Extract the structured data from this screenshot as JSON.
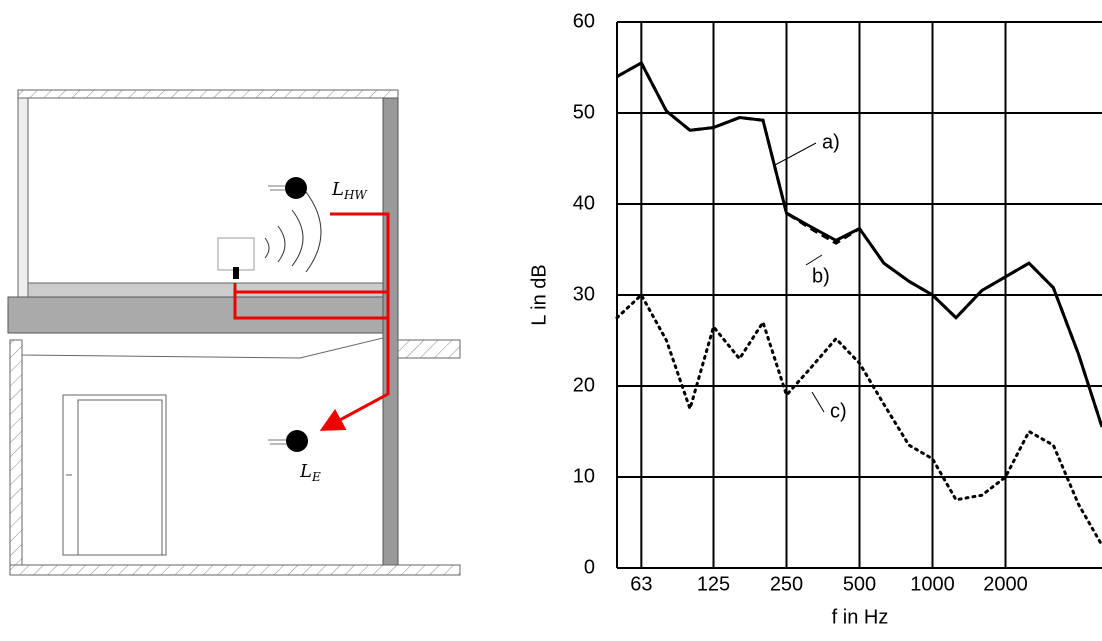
{
  "diagram": {
    "labels": [
      {
        "main": "L",
        "sub": "HW"
      },
      {
        "main": "L",
        "sub": "E"
      }
    ]
  },
  "chart_data": {
    "type": "line",
    "x_label": "f in Hz",
    "y_label": "L in dB",
    "x": [
      50,
      63,
      80,
      100,
      125,
      160,
      200,
      250,
      315,
      400,
      500,
      630,
      800,
      1000,
      1250,
      1600,
      2000,
      2500,
      3150,
      4000,
      5000
    ],
    "xlim": [
      50,
      5000
    ],
    "xscale": "log",
    "xticks": [
      63,
      125,
      250,
      500,
      1000,
      2000
    ],
    "ylim": [
      0,
      60
    ],
    "yticks": [
      0,
      10,
      20,
      30,
      40,
      50,
      60
    ],
    "grid": true,
    "series": [
      {
        "name": "a)",
        "color": "#000000",
        "style": "solid",
        "values": [
          54,
          55.5,
          50.2,
          48.1,
          48.4,
          49.5,
          49.2,
          39,
          37.5,
          36,
          37.3,
          33.5,
          31.5,
          30,
          27.5,
          30.5,
          32,
          33.5,
          30.8,
          23.5,
          15.5
        ]
      },
      {
        "name": "b)",
        "color": "#000000",
        "style": "dashed",
        "values": [
          54,
          55.5,
          50.2,
          48.1,
          48.4,
          49.5,
          49.2,
          39,
          37.3,
          35.7,
          37.3,
          33.5,
          31.5,
          30,
          27.5,
          30.5,
          32,
          33.5,
          30.8,
          23.5,
          15.5
        ]
      },
      {
        "name": "c)",
        "color": "#000000",
        "style": "dotted",
        "values": [
          27.5,
          30,
          25,
          17.5,
          26.5,
          23,
          27,
          19,
          22,
          25.2,
          22.5,
          18,
          13.5,
          12,
          7.5,
          8,
          10,
          15,
          13.5,
          7,
          2.5
        ]
      }
    ]
  }
}
